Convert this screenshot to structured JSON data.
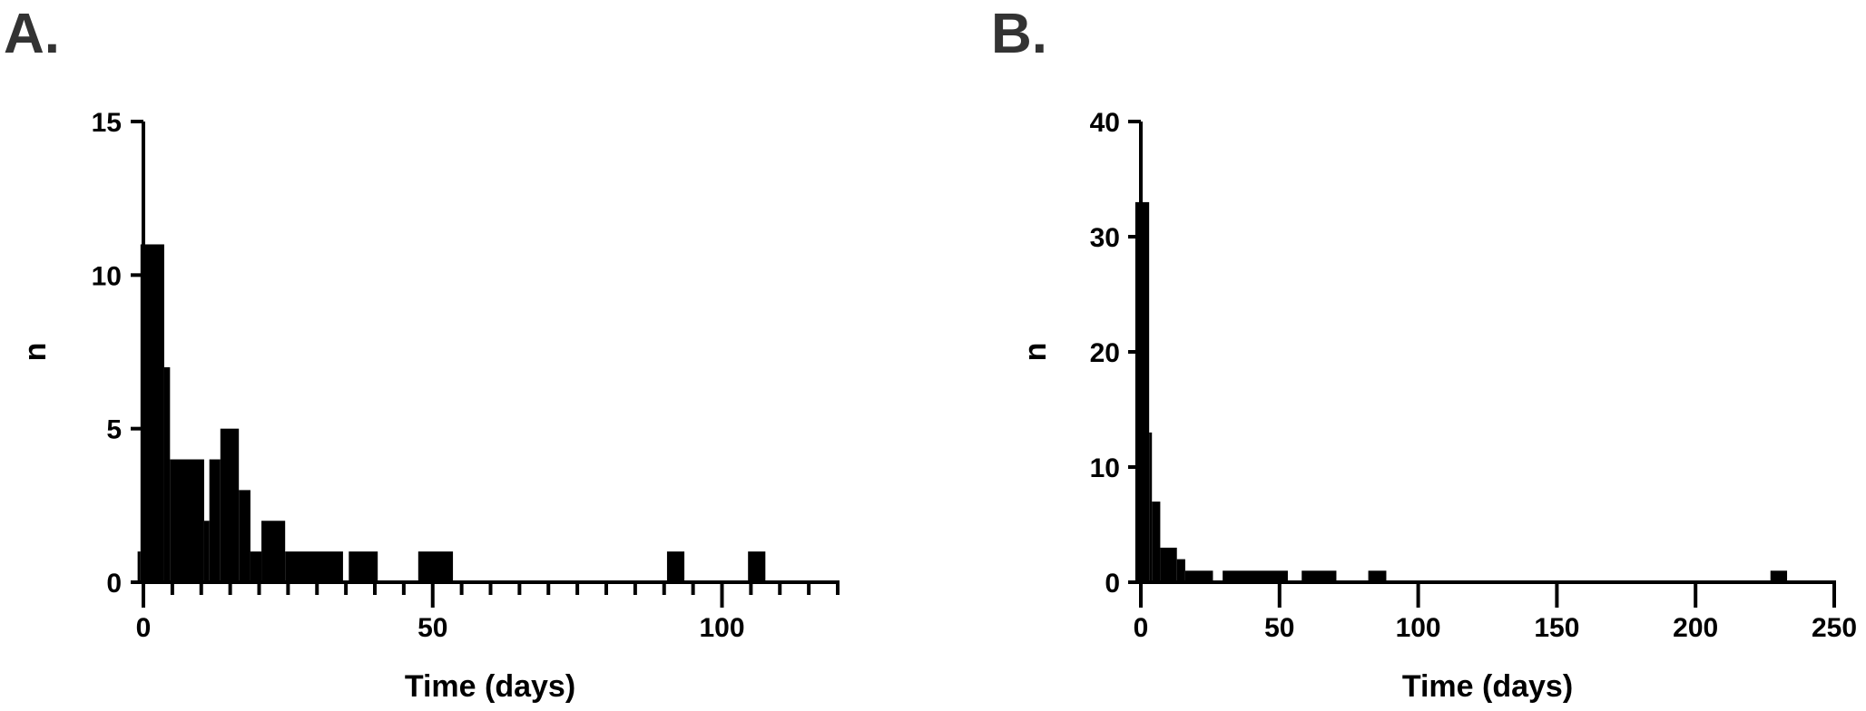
{
  "colors": {
    "bar": "#000000",
    "axis": "#000000",
    "panel_label": "#333333"
  },
  "chart_data": [
    {
      "type": "bar",
      "panel_label": "A.",
      "title": "",
      "xlabel": "Time (days)",
      "ylabel": "n",
      "xlim": [
        0,
        120
      ],
      "ylim": [
        0,
        15
      ],
      "xticks": [
        0,
        50,
        100
      ],
      "xtick_labels": [
        "0",
        "50",
        "100"
      ],
      "x_minor_tick_step": 5,
      "yticks": [
        0,
        5,
        10,
        15
      ],
      "ytick_labels": [
        "0",
        "5",
        "10",
        "15"
      ],
      "grid": false,
      "bins": [
        {
          "start": -1,
          "end": -0.5,
          "count": 1
        },
        {
          "start": -0.5,
          "end": 3.6,
          "count": 11
        },
        {
          "start": 3.6,
          "end": 4.6,
          "count": 7
        },
        {
          "start": 4.6,
          "end": 10.5,
          "count": 4
        },
        {
          "start": 10.5,
          "end": 11.4,
          "count": 2
        },
        {
          "start": 11.4,
          "end": 13.3,
          "count": 4
        },
        {
          "start": 13.3,
          "end": 16.5,
          "count": 5
        },
        {
          "start": 16.5,
          "end": 18.5,
          "count": 3
        },
        {
          "start": 18.5,
          "end": 20.4,
          "count": 1
        },
        {
          "start": 20.4,
          "end": 24.5,
          "count": 2
        },
        {
          "start": 24.5,
          "end": 34.5,
          "count": 1
        },
        {
          "start": 35.5,
          "end": 40.5,
          "count": 1
        },
        {
          "start": 47.5,
          "end": 53.5,
          "count": 1
        },
        {
          "start": 90.5,
          "end": 93.5,
          "count": 1
        },
        {
          "start": 104.5,
          "end": 107.5,
          "count": 1
        }
      ]
    },
    {
      "type": "bar",
      "panel_label": "B.",
      "title": "",
      "xlabel": "Time (days)",
      "ylabel": "n",
      "xlim": [
        0,
        250
      ],
      "ylim": [
        0,
        40
      ],
      "xticks": [
        0,
        50,
        100,
        150,
        200,
        250
      ],
      "xtick_labels": [
        "0",
        "50",
        "100",
        "150",
        "200",
        "250"
      ],
      "x_minor_tick_step": 0,
      "yticks": [
        0,
        10,
        20,
        30,
        40
      ],
      "ytick_labels": [
        "0",
        "10",
        "20",
        "30",
        "40"
      ],
      "grid": false,
      "bins": [
        {
          "start": -2,
          "end": 3,
          "count": 33
        },
        {
          "start": 3,
          "end": 4,
          "count": 13
        },
        {
          "start": 4,
          "end": 7,
          "count": 7
        },
        {
          "start": 7,
          "end": 13,
          "count": 3
        },
        {
          "start": 13,
          "end": 16,
          "count": 2
        },
        {
          "start": 16,
          "end": 26,
          "count": 1
        },
        {
          "start": 29.5,
          "end": 53,
          "count": 1
        },
        {
          "start": 58,
          "end": 70.5,
          "count": 1
        },
        {
          "start": 82,
          "end": 88.5,
          "count": 1
        },
        {
          "start": 227,
          "end": 233,
          "count": 1
        }
      ]
    }
  ]
}
